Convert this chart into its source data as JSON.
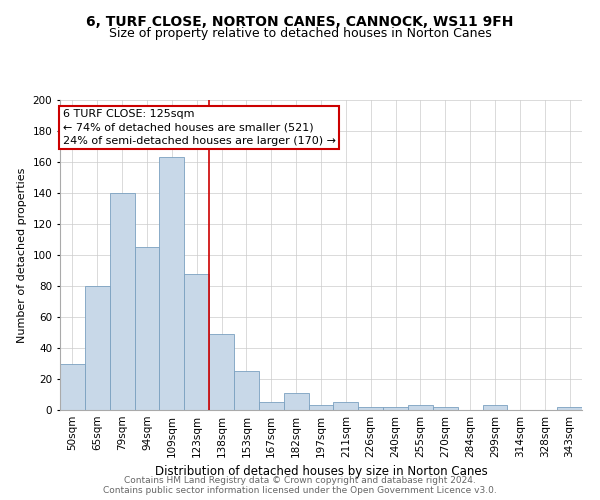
{
  "title": "6, TURF CLOSE, NORTON CANES, CANNOCK, WS11 9FH",
  "subtitle": "Size of property relative to detached houses in Norton Canes",
  "xlabel": "Distribution of detached houses by size in Norton Canes",
  "ylabel": "Number of detached properties",
  "categories": [
    "50sqm",
    "65sqm",
    "79sqm",
    "94sqm",
    "109sqm",
    "123sqm",
    "138sqm",
    "153sqm",
    "167sqm",
    "182sqm",
    "197sqm",
    "211sqm",
    "226sqm",
    "240sqm",
    "255sqm",
    "270sqm",
    "284sqm",
    "299sqm",
    "314sqm",
    "328sqm",
    "343sqm"
  ],
  "values": [
    30,
    80,
    140,
    105,
    163,
    88,
    49,
    25,
    5,
    11,
    3,
    5,
    2,
    2,
    3,
    2,
    0,
    3,
    0,
    0,
    2
  ],
  "bar_color": "#c8d8e8",
  "bar_edgecolor": "#7aa0c0",
  "vline_color": "#cc0000",
  "vline_index": 5,
  "annotation_text_line1": "6 TURF CLOSE: 125sqm",
  "annotation_text_line2": "← 74% of detached houses are smaller (521)",
  "annotation_text_line3": "24% of semi-detached houses are larger (170) →",
  "box_edgecolor": "#cc0000",
  "ylim": [
    0,
    200
  ],
  "yticks": [
    0,
    20,
    40,
    60,
    80,
    100,
    120,
    140,
    160,
    180,
    200
  ],
  "footer1": "Contains HM Land Registry data © Crown copyright and database right 2024.",
  "footer2": "Contains public sector information licensed under the Open Government Licence v3.0.",
  "title_fontsize": 10,
  "subtitle_fontsize": 9,
  "xlabel_fontsize": 8.5,
  "ylabel_fontsize": 8,
  "tick_fontsize": 7.5,
  "annotation_fontsize": 8,
  "footer_fontsize": 6.5,
  "background_color": "#ffffff"
}
